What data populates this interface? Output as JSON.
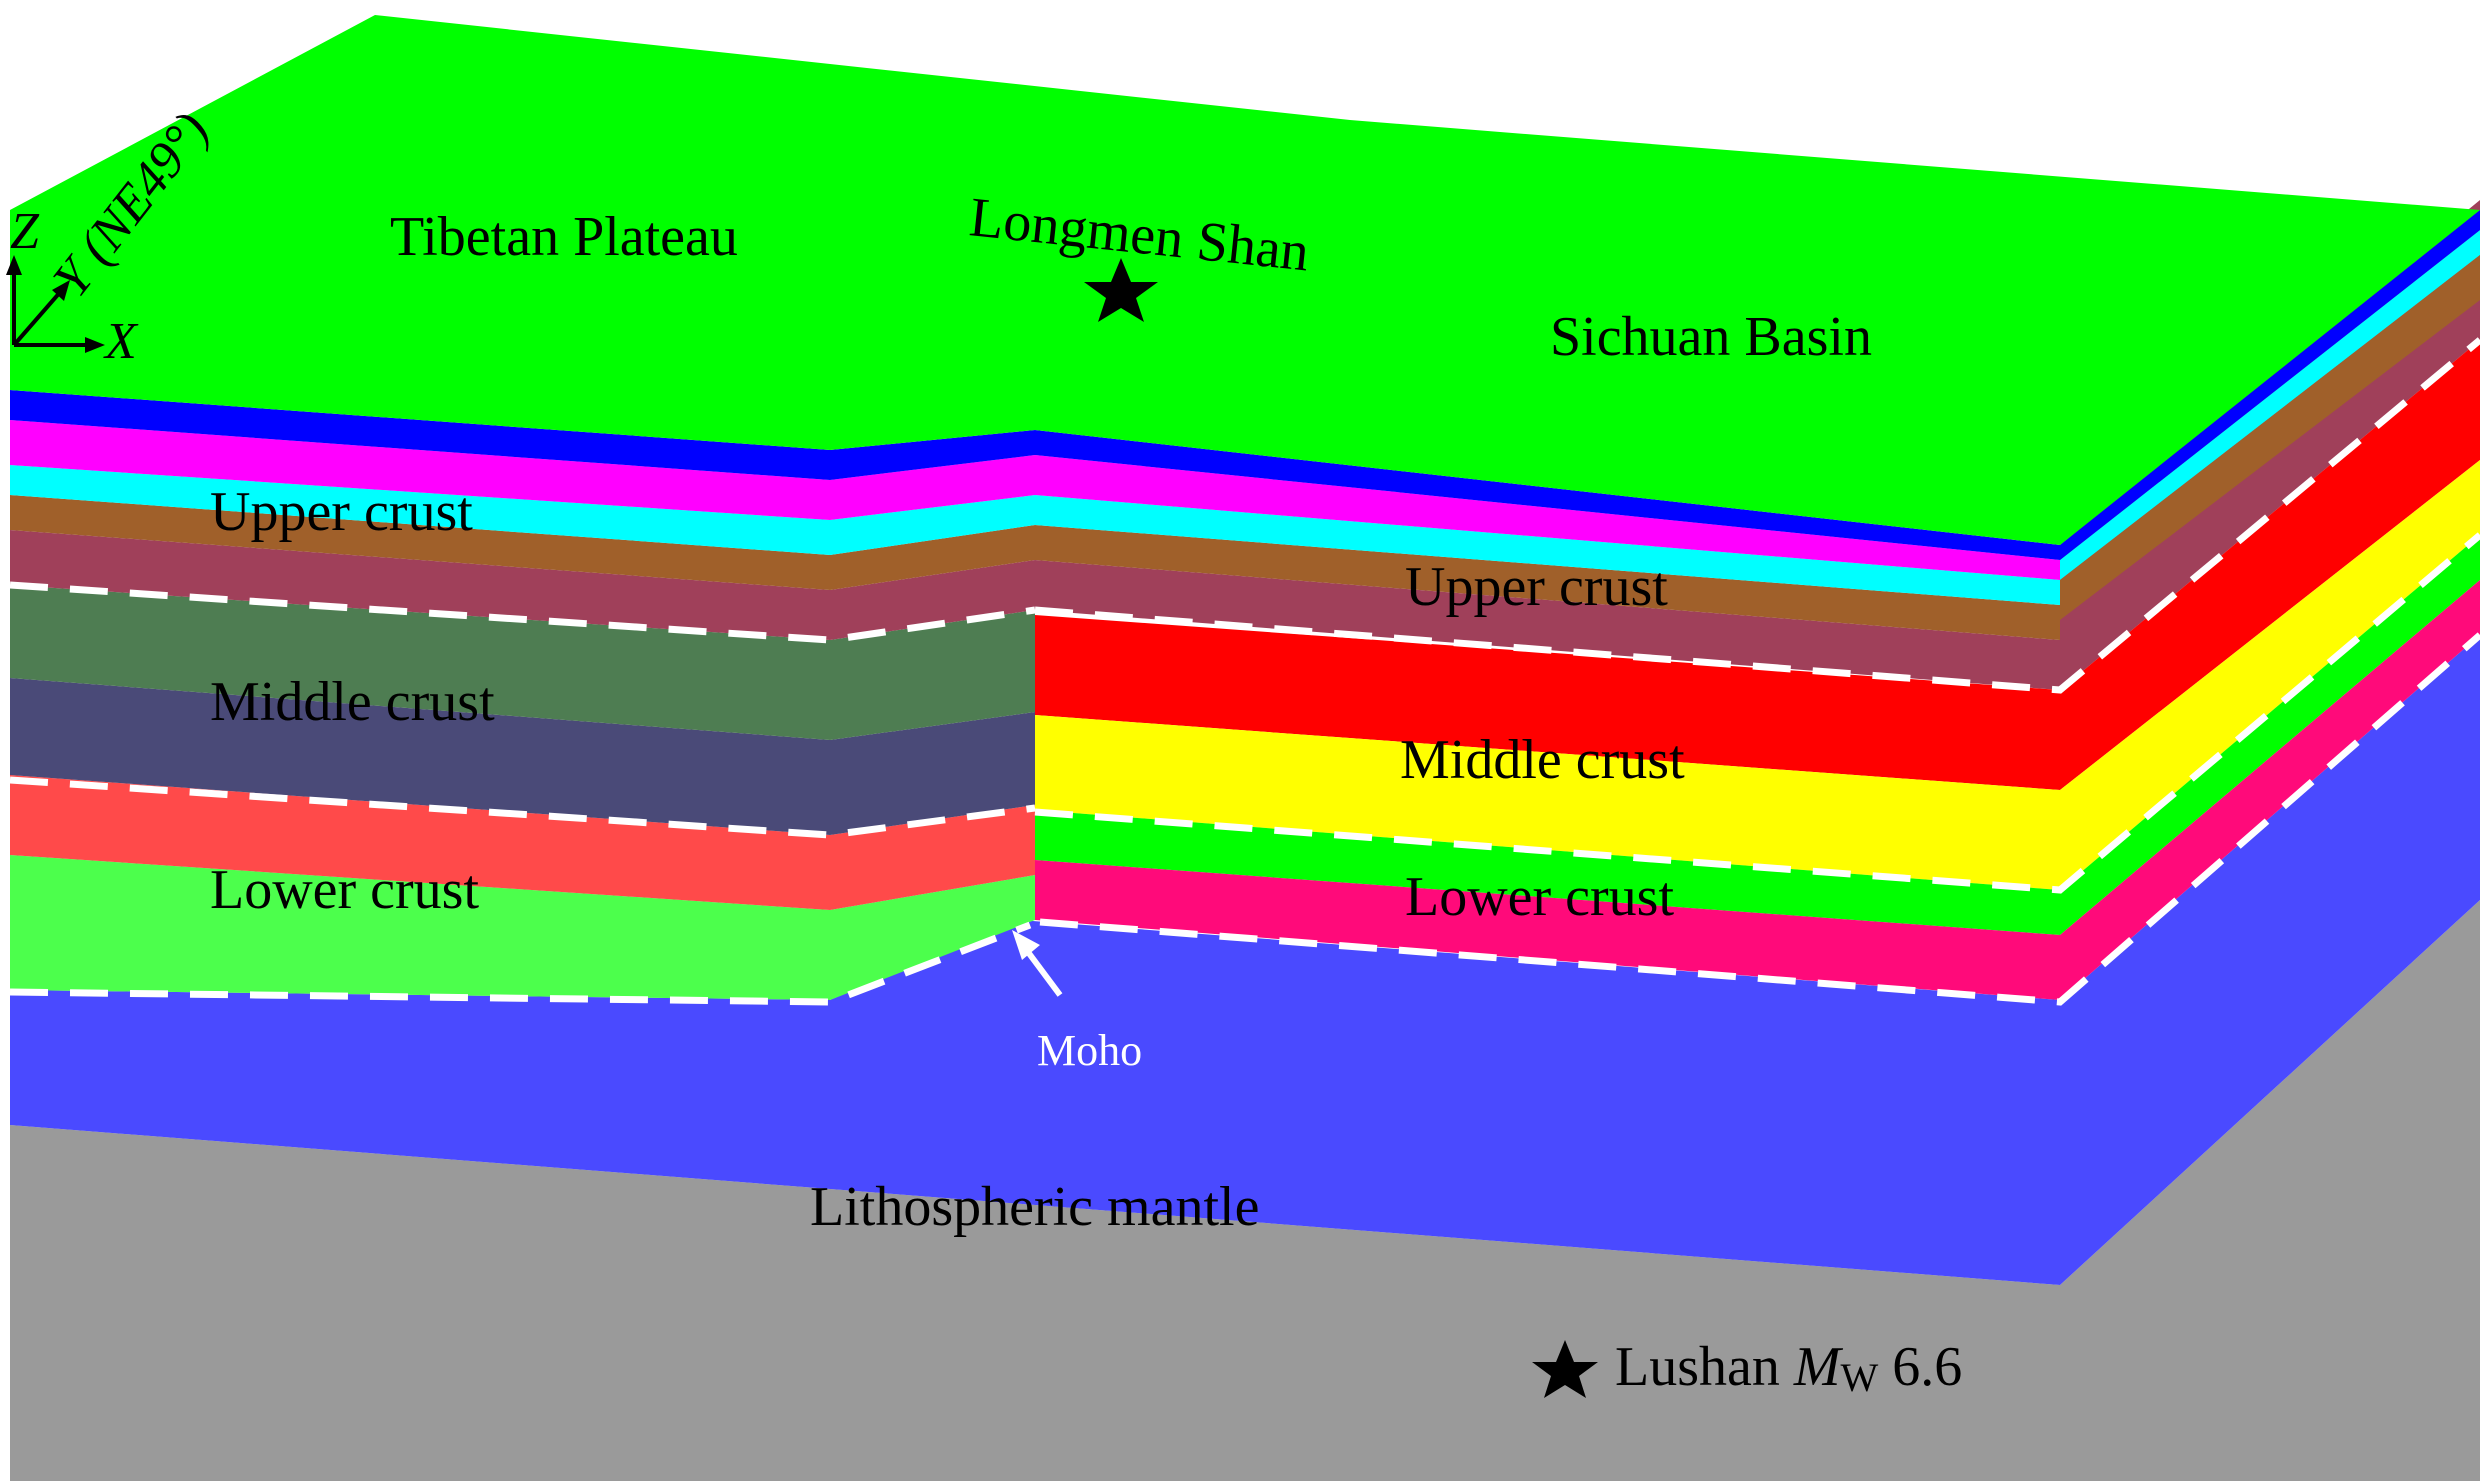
{
  "labels": {
    "tibetan_plateau": "Tibetan Plateau",
    "longmen_shan": "Longmen Shan",
    "sichuan_basin": "Sichuan Basin",
    "upper_crust_left": "Upper crust",
    "middle_crust_left": "Middle crust",
    "lower_crust_left": "Lower crust",
    "upper_crust_right": "Upper crust",
    "middle_crust_right": "Middle crust",
    "lower_crust_right": "Lower crust",
    "lithospheric_mantle": "Lithospheric mantle",
    "moho": "Moho"
  },
  "axes": {
    "z": "Z",
    "y": "Y (NE49°)",
    "x": "X"
  },
  "legend": {
    "event_prefix": "Lushan ",
    "event_m": "M",
    "event_sub": "W",
    "event_value": " 6.6"
  },
  "colors": {
    "surface": "#00ff00",
    "left_upper_1": "#0000ff",
    "left_upper_2": "#ff00ff",
    "left_upper_3": "#00ffff",
    "left_upper_4": "#a0602a",
    "left_upper_5": "#a0405a",
    "left_middle_1": "#4e7d52",
    "left_middle_2": "#4a4a78",
    "left_lower_1": "#ff4a4a",
    "left_lower_2": "#4cff4c",
    "right_middle_1": "#ff0000",
    "right_middle_2": "#ffff00",
    "right_lower_1": "#00ff00",
    "right_lower_2": "#ff0a7a",
    "mantle": "#4a4aff",
    "asthenosphere": "#9a9a9a",
    "moho_line": "#ffffff",
    "star": "#000000"
  },
  "icons": {
    "epicenter": "star-icon",
    "legend": "star-icon"
  }
}
